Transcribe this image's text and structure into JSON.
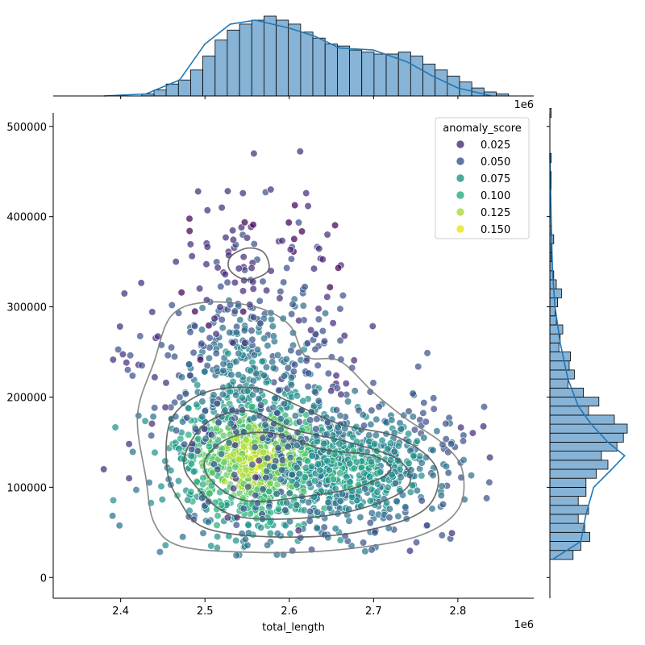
{
  "chart_data": {
    "type": "scatter",
    "title": "",
    "xlabel": "total_length",
    "ylabel": "",
    "x_offset_text": "1e6",
    "top_offset_text": "1e6",
    "xlim": [
      2.32,
      2.89
    ],
    "ylim": [
      -23000,
      515000
    ],
    "x_scale_factor": 1000000,
    "x_ticks": [
      2.4,
      2.5,
      2.6,
      2.7,
      2.8
    ],
    "y_ticks": [
      0,
      100000,
      200000,
      300000,
      400000,
      500000
    ],
    "grid": false,
    "legend": {
      "title": "anomaly_score",
      "placement": "top-right",
      "entries": [
        {
          "label": "0.025",
          "color": "#472d7b"
        },
        {
          "label": "0.050",
          "color": "#3b528b"
        },
        {
          "label": "0.075",
          "color": "#21918c"
        },
        {
          "label": "0.100",
          "color": "#27ad81"
        },
        {
          "label": "0.125",
          "color": "#aadc32"
        },
        {
          "label": "0.150",
          "color": "#e8e419"
        }
      ]
    },
    "point_cloud": {
      "description_of_density": "dense core near x=2.55e6, y=130000; outliers extend to y~470000",
      "clusters": [
        {
          "cx": 2.56,
          "cy": 130000,
          "sx": 0.05,
          "sy": 40000,
          "count": 900,
          "score": 0.14
        },
        {
          "cx": 2.68,
          "cy": 120000,
          "sx": 0.06,
          "sy": 35000,
          "count": 600,
          "score": 0.09
        },
        {
          "cx": 2.55,
          "cy": 230000,
          "sx": 0.06,
          "sy": 55000,
          "count": 350,
          "score": 0.07
        },
        {
          "cx": 2.55,
          "cy": 340000,
          "sx": 0.045,
          "sy": 40000,
          "count": 80,
          "score": 0.035
        }
      ],
      "extra_points": [
        {
          "x": 2.38,
          "y": 120000
        },
        {
          "x": 2.838,
          "y": 133000
        },
        {
          "x": 2.558,
          "y": 470000
        },
        {
          "x": 2.578,
          "y": 430000
        },
        {
          "x": 2.62,
          "y": 426000
        },
        {
          "x": 2.545,
          "y": 426000
        },
        {
          "x": 2.503,
          "y": 407000
        },
        {
          "x": 2.52,
          "y": 410000
        },
        {
          "x": 2.41,
          "y": 148000
        },
        {
          "x": 2.41,
          "y": 110000
        }
      ]
    },
    "kde_contours": [
      [
        [
          2.44,
          60000
        ],
        [
          2.47,
          35000
        ],
        [
          2.55,
          28000
        ],
        [
          2.65,
          30000
        ],
        [
          2.75,
          45000
        ],
        [
          2.8,
          75000
        ],
        [
          2.805,
          120000
        ],
        [
          2.78,
          150000
        ],
        [
          2.74,
          175000
        ],
        [
          2.7,
          205000
        ],
        [
          2.66,
          240000
        ],
        [
          2.62,
          245000
        ],
        [
          2.6,
          280000
        ],
        [
          2.56,
          300000
        ],
        [
          2.5,
          305000
        ],
        [
          2.46,
          290000
        ],
        [
          2.44,
          240000
        ],
        [
          2.42,
          180000
        ],
        [
          2.43,
          110000
        ]
      ],
      [
        [
          2.47,
          85000
        ],
        [
          2.5,
          55000
        ],
        [
          2.58,
          45000
        ],
        [
          2.68,
          50000
        ],
        [
          2.76,
          75000
        ],
        [
          2.775,
          120000
        ],
        [
          2.73,
          155000
        ],
        [
          2.66,
          170000
        ],
        [
          2.6,
          195000
        ],
        [
          2.56,
          210000
        ],
        [
          2.5,
          205000
        ],
        [
          2.46,
          175000
        ],
        [
          2.455,
          120000
        ]
      ],
      [
        [
          2.49,
          100000
        ],
        [
          2.53,
          70000
        ],
        [
          2.6,
          65000
        ],
        [
          2.68,
          75000
        ],
        [
          2.74,
          100000
        ],
        [
          2.73,
          130000
        ],
        [
          2.67,
          150000
        ],
        [
          2.6,
          165000
        ],
        [
          2.55,
          185000
        ],
        [
          2.5,
          170000
        ],
        [
          2.475,
          130000
        ]
      ],
      [
        [
          2.51,
          105000
        ],
        [
          2.55,
          85000
        ],
        [
          2.62,
          90000
        ],
        [
          2.68,
          100000
        ],
        [
          2.72,
          118000
        ],
        [
          2.7,
          135000
        ],
        [
          2.64,
          142000
        ],
        [
          2.58,
          160000
        ],
        [
          2.53,
          155000
        ],
        [
          2.5,
          130000
        ]
      ],
      [
        [
          2.53,
          340000
        ],
        [
          2.55,
          330000
        ],
        [
          2.575,
          340000
        ],
        [
          2.57,
          360000
        ],
        [
          2.55,
          365000
        ],
        [
          2.53,
          355000
        ]
      ]
    ],
    "top_histogram": {
      "bin_start": 2.425,
      "bin_width": 0.0145,
      "counts": [
        1,
        3,
        6,
        8,
        13,
        20,
        28,
        33,
        36,
        38,
        40,
        38,
        36,
        32,
        29,
        26,
        25,
        23,
        22,
        21,
        21,
        22,
        20,
        16,
        13,
        10,
        7,
        4,
        2,
        1
      ],
      "kde": [
        [
          2.38,
          0
        ],
        [
          2.43,
          1
        ],
        [
          2.47,
          8
        ],
        [
          2.5,
          26
        ],
        [
          2.53,
          36
        ],
        [
          2.56,
          38
        ],
        [
          2.6,
          34
        ],
        [
          2.63,
          30
        ],
        [
          2.66,
          24
        ],
        [
          2.7,
          23
        ],
        [
          2.74,
          17
        ],
        [
          2.77,
          10
        ],
        [
          2.8,
          4
        ],
        [
          2.84,
          0
        ]
      ]
    },
    "right_histogram": {
      "bin_start": 20000,
      "bin_width": 10000,
      "counts": [
        18,
        24,
        31,
        27,
        22,
        30,
        22,
        28,
        28,
        36,
        45,
        40,
        52,
        57,
        60,
        50,
        30,
        38,
        26,
        14,
        19,
        15,
        16,
        7,
        8,
        10,
        5,
        4,
        6,
        9,
        5,
        3,
        2,
        1,
        1,
        3,
        1,
        1,
        1,
        1,
        0,
        1,
        1,
        0,
        1,
        0,
        0,
        0,
        0,
        1
      ],
      "kde": [
        [
          20000,
          2
        ],
        [
          40000,
          24
        ],
        [
          70000,
          28
        ],
        [
          100000,
          34
        ],
        [
          120000,
          48
        ],
        [
          135000,
          58
        ],
        [
          150000,
          45
        ],
        [
          170000,
          32
        ],
        [
          190000,
          22
        ],
        [
          220000,
          14
        ],
        [
          260000,
          8
        ],
        [
          300000,
          4
        ],
        [
          340000,
          2
        ],
        [
          400000,
          1
        ],
        [
          470000,
          0
        ]
      ]
    }
  }
}
